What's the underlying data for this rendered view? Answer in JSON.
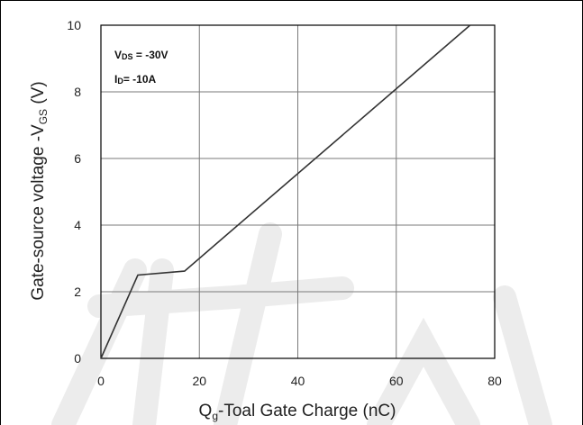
{
  "chart_data": {
    "type": "line",
    "title": "",
    "xlabel": "Q",
    "xlabel_sub": "g",
    "xlabel_rest": "-Toal Gate Charge  (nC)",
    "ylabel": "Gate-source voltage -V",
    "ylabel_sub": "GS",
    "ylabel_rest": " (V)",
    "xlim": [
      0,
      80
    ],
    "ylim": [
      0,
      10
    ],
    "x_ticks": [
      0,
      20,
      40,
      60,
      80
    ],
    "y_ticks": [
      0,
      2,
      4,
      6,
      8,
      10
    ],
    "grid": true,
    "annotations": [
      {
        "main": "V",
        "sub": "DS",
        "rest": " = -30V"
      },
      {
        "main": "I",
        "sub": "D",
        "rest": "= -10A"
      }
    ],
    "series": [
      {
        "x": [
          0,
          7.5,
          17,
          75
        ],
        "y": [
          0,
          2.5,
          2.62,
          10
        ]
      }
    ],
    "colors": {
      "line": "#333333",
      "grid": "#7a7a7a",
      "axis": "#000000",
      "watermark": "#ececec"
    }
  }
}
